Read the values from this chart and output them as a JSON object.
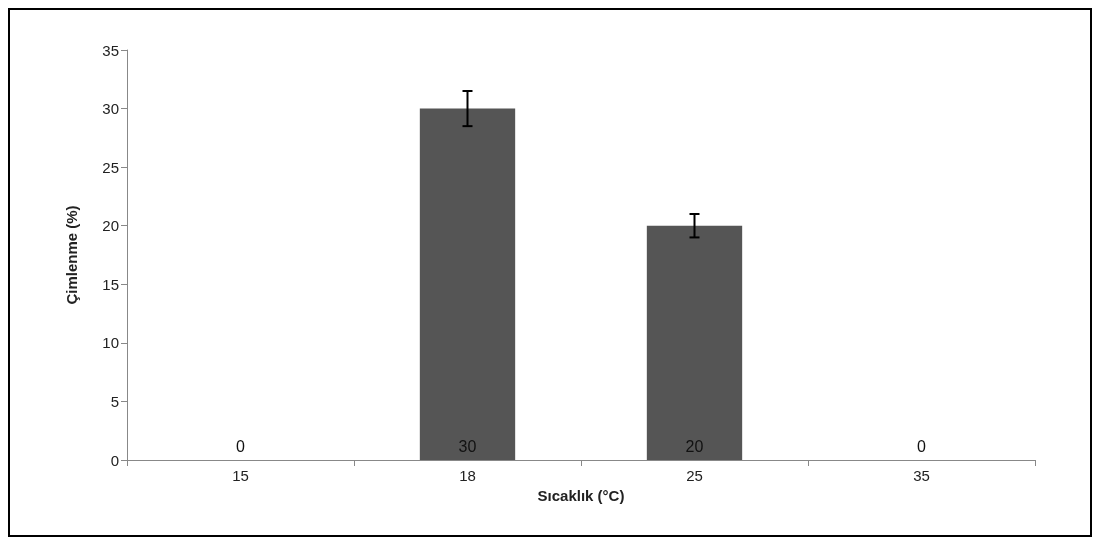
{
  "chart_data": {
    "type": "bar",
    "xlabel": "Sıcaklık (°C)",
    "ylabel": "Çimlenme (%)",
    "categories": [
      "15",
      "18",
      "25",
      "35"
    ],
    "values": [
      0,
      30,
      20,
      0
    ],
    "errors": [
      null,
      1.5,
      1,
      null
    ],
    "color": "#555555",
    "ylim": [
      0,
      35
    ],
    "yticks": [
      0,
      5,
      10,
      15,
      20,
      25,
      30,
      35
    ],
    "grid": false,
    "data_labels": true
  }
}
